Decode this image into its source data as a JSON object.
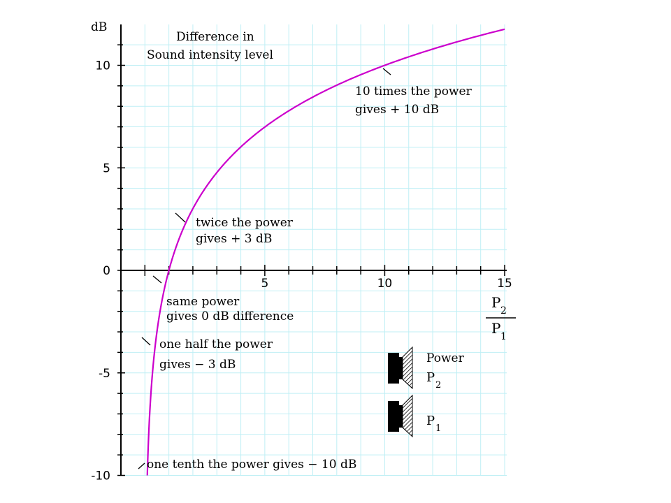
{
  "chart_data": {
    "type": "line",
    "title_line1": "Difference in",
    "title_line2": "Sound intensity level",
    "ylabel": "dB",
    "xlabel_num": "P",
    "xlabel_num_sub": "2",
    "xlabel_den": "P",
    "xlabel_den_sub": "1",
    "xlim": [
      -1,
      15
    ],
    "ylim": [
      -10,
      12
    ],
    "x_ticks": [
      5,
      10,
      15
    ],
    "x_tick_labels": [
      "5",
      "10",
      "15"
    ],
    "y_ticks": [
      10,
      5,
      0,
      -5,
      -10
    ],
    "y_tick_labels": [
      "10",
      "5",
      "0",
      "-5",
      "-10"
    ],
    "grid": true,
    "grid_color": "#bfeff5",
    "line_color": "#cc00cc",
    "function": "10*log10(x)",
    "x_range": [
      0.1,
      15
    ],
    "key_points": [
      {
        "x": 0.1,
        "y": -10
      },
      {
        "x": 0.5,
        "y": -3
      },
      {
        "x": 1,
        "y": 0
      },
      {
        "x": 2,
        "y": 3
      },
      {
        "x": 10,
        "y": 10
      },
      {
        "x": 15,
        "y": 11.76
      }
    ],
    "annotations": {
      "ten_times_1": "10 times the power",
      "ten_times_2": "gives + 10 dB",
      "twice_1": "twice the power",
      "twice_2": "gives + 3 dB",
      "same_1": "same power",
      "same_2": "gives 0 dB difference",
      "half_1": "one half the power",
      "half_2": "gives − 3 dB",
      "tenth": "one tenth the power gives  − 10 dB"
    },
    "legend": {
      "power_label": "Power",
      "p2_label": "P",
      "p2_sub": "2",
      "p1_label": "P",
      "p1_sub": "1"
    }
  }
}
